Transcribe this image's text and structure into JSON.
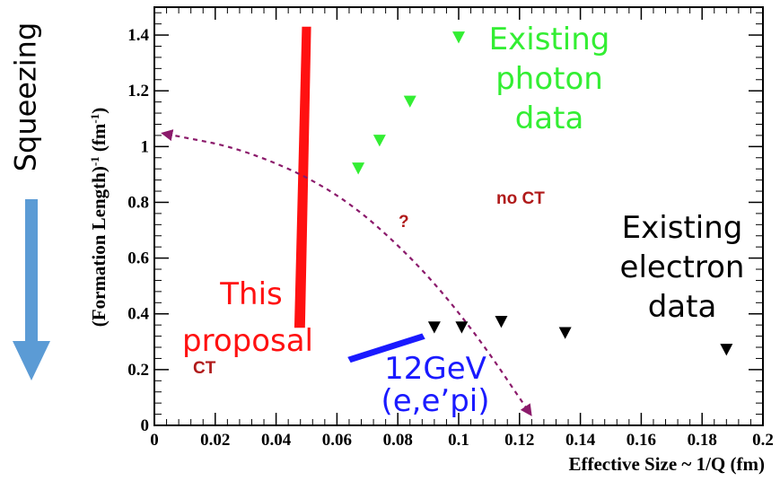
{
  "chart_data": {
    "type": "scatter",
    "title": "",
    "xlabel": "Effective Size ~ 1/Q (fm)",
    "ylabel": "(Formation Length)",
    "ylabel_sup": "-1",
    "ylabel_unit": " (fm",
    "ylabel_unit_sup": "-1",
    "ylabel_close": ")",
    "xlim": [
      0,
      0.2
    ],
    "ylim": [
      0,
      1.5
    ],
    "x_ticks": [
      0,
      0.02,
      0.04,
      0.06,
      0.08,
      0.1,
      0.12,
      0.14,
      0.16,
      0.18,
      0.2
    ],
    "x_tick_labels": [
      "0",
      "0.02",
      "0.04",
      "0.06",
      "0.08",
      "0.1",
      "0.12",
      "0.14",
      "0.16",
      "0.18",
      "0.2"
    ],
    "y_ticks": [
      0,
      0.2,
      0.4,
      0.6,
      0.8,
      1,
      1.2,
      1.4
    ],
    "y_tick_labels": [
      "0",
      "0.2",
      "0.4",
      "0.6",
      "0.8",
      "1",
      "1.2",
      "1.4"
    ],
    "series": [
      {
        "name": "Existing photon data",
        "marker": "triangle-down",
        "color": "#33ee33",
        "points": [
          [
            0.1,
            1.39
          ],
          [
            0.084,
            1.16
          ],
          [
            0.074,
            1.02
          ],
          [
            0.067,
            0.92
          ]
        ]
      },
      {
        "name": "Existing electron data",
        "marker": "triangle-down",
        "color": "#000000",
        "points": [
          [
            0.092,
            0.35
          ],
          [
            0.101,
            0.35
          ],
          [
            0.114,
            0.37
          ],
          [
            0.135,
            0.33
          ],
          [
            0.188,
            0.27
          ]
        ]
      }
    ],
    "this_proposal_band": {
      "color": "#ff1111",
      "polygon": [
        [
          0.0485,
          1.43
        ],
        [
          0.0515,
          1.43
        ],
        [
          0.0495,
          0.35
        ],
        [
          0.046,
          0.35
        ]
      ]
    },
    "twelve_gev_band": {
      "color": "#1a1aff",
      "polygon": [
        [
          0.0635,
          0.245
        ],
        [
          0.088,
          0.33
        ],
        [
          0.089,
          0.31
        ],
        [
          0.0645,
          0.225
        ]
      ]
    },
    "boundary_curve": {
      "color": "#8b1a6b",
      "dashed": true,
      "points": [
        [
          0.004,
          1.045
        ],
        [
          0.03,
          0.99
        ],
        [
          0.06,
          0.84
        ],
        [
          0.085,
          0.6
        ],
        [
          0.105,
          0.34
        ],
        [
          0.123,
          0.05
        ]
      ]
    },
    "annotations": {
      "photon_line1": "Existing",
      "photon_line2": "photon",
      "photon_line3": "data",
      "electron_line1": "Existing",
      "electron_line2": "electron",
      "electron_line3": "data",
      "proposal_line1": "This",
      "proposal_line2": "proposal",
      "gev_line1": "12GeV",
      "gev_line2": "(e,e’pi)",
      "no_ct": "no CT",
      "ct": "CT",
      "question": "?"
    },
    "grid": false,
    "legend": "none"
  },
  "side_label": "Squeezing",
  "colors": {
    "photon": "#33ee33",
    "electron": "#000000",
    "proposal": "#ff1111",
    "gev": "#1a1aff",
    "ct_text": "#b01a1a",
    "arrow": "#5b9bd5",
    "curve": "#8b1a6b"
  }
}
